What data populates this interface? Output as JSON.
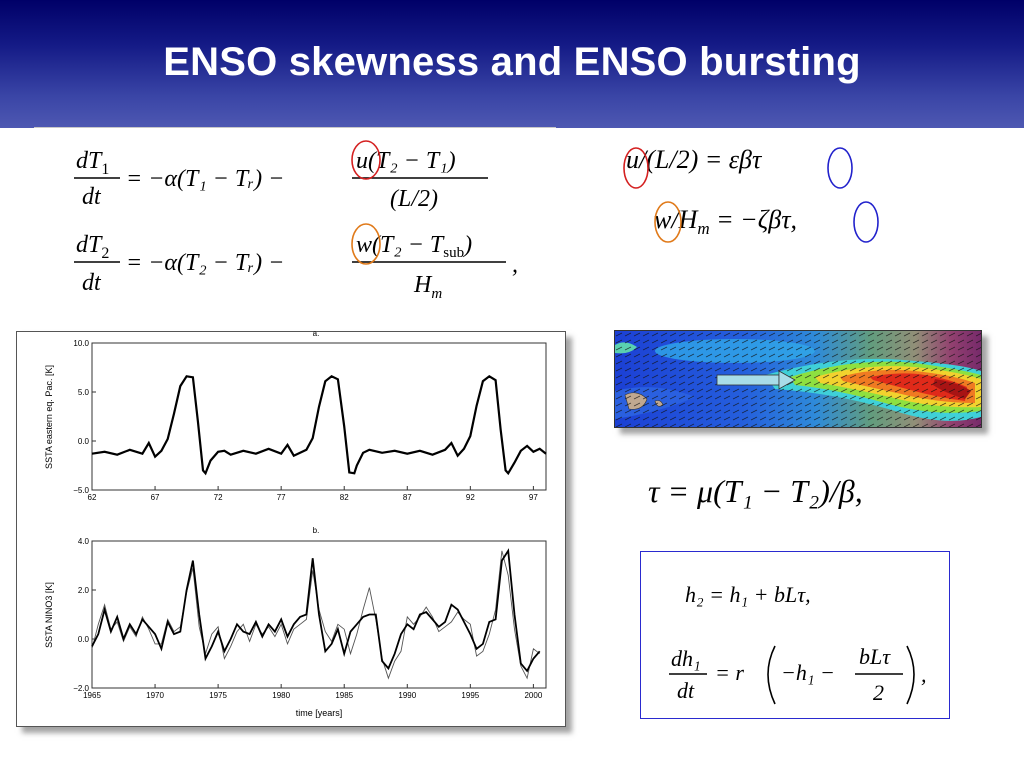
{
  "title": "ENSO skewness and ENSO bursting",
  "equations": {
    "eq1": {
      "lhs_num": "dT",
      "lhs_sub": "1",
      "lhs_den": "dt",
      "rhs": "= −α(T₁ − Tᵣ) −",
      "num": "u(T₂ − T₁)",
      "den": "(L/2)"
    },
    "eq2": {
      "lhs_num": "dT",
      "lhs_sub": "2",
      "lhs_den": "dt",
      "rhs": "= −α(T₂ − Tᵣ) −",
      "num": "w(T₂ − T",
      "num_sub": "sub",
      "num_end": ")",
      "den": "H",
      "den_sub": "m",
      "end": ","
    },
    "u_rel": "u/(L/2)  =  εβτ",
    "w_rel_a": "w/H",
    "w_rel_sub": "m",
    "w_rel_b": "  =  −ζβτ,",
    "tau_rel": "τ  =  μ(T₁  −  T₂)/β,",
    "h2": "h₂  =  h₁  +  bLτ,",
    "dh1_num": "dh₁",
    "dh1_den": "dt",
    "dh1_mid": "=  r",
    "dh1_inner": "−h₁  −",
    "dh1_frac_num": "bLτ",
    "dh1_frac_den": "2",
    "dh1_end": ","
  },
  "colors": {
    "title_bg": "#1a1f8c",
    "circle_red": "#d42020",
    "circle_orange": "#e07a1a",
    "circle_blue": "#2222cc",
    "box_border": "#2a2acf"
  },
  "chart_data": [
    {
      "type": "line",
      "panel_label": "a.",
      "title": "",
      "xlabel": "",
      "ylabel": "SSTA eastern eq. Pac. [K]",
      "xlim": [
        62,
        98
      ],
      "ylim": [
        -5.0,
        10.0
      ],
      "xticks": [
        "62",
        "67",
        "72",
        "77",
        "82",
        "87",
        "92",
        "97"
      ],
      "yticks": [
        "−5.0",
        "0.0",
        "5.0",
        "10.0"
      ],
      "series": [
        {
          "x": [
            62,
            63,
            64,
            65,
            66,
            66.5,
            67,
            67.5,
            68,
            68.5,
            69,
            69.5,
            70,
            70.4,
            70.8,
            71,
            71.4,
            72,
            72.5,
            73,
            74,
            75,
            76,
            77,
            77.5,
            78,
            79,
            79.5,
            80,
            80.5,
            81,
            81.5,
            82,
            82.4,
            82.8,
            83,
            83.5,
            84,
            85,
            86,
            87,
            88,
            89,
            90,
            90.5,
            91,
            91.5,
            92,
            92.5,
            93,
            93.5,
            94,
            94.4,
            94.8,
            95,
            95.5,
            96,
            96.5,
            97,
            97.5,
            98
          ],
          "y": [
            -1.3,
            -1.1,
            -1.4,
            -0.9,
            -1.3,
            -0.2,
            -1.6,
            -1.0,
            0.2,
            2.8,
            5.6,
            6.6,
            6.5,
            2.0,
            -3.0,
            -3.3,
            -2.0,
            -1.1,
            -1.0,
            -1.4,
            -1.0,
            -1.3,
            -0.8,
            -1.3,
            -0.4,
            -1.5,
            -0.9,
            0.3,
            3.5,
            6.1,
            6.6,
            6.3,
            1.5,
            -3.2,
            -3.3,
            -2.5,
            -1.2,
            -0.9,
            -1.2,
            -1.0,
            -1.3,
            -1.0,
            -1.4,
            -0.9,
            -0.2,
            -1.5,
            -0.8,
            0.5,
            3.6,
            6.1,
            6.6,
            6.2,
            1.2,
            -3.0,
            -3.3,
            -2.2,
            -1.0,
            -0.5,
            -1.1,
            -0.8,
            -1.3
          ]
        }
      ]
    },
    {
      "type": "line",
      "panel_label": "b.",
      "title": "",
      "xlabel": "time [years]",
      "ylabel": "SSTA NINO3 [K]",
      "xlim": [
        1965,
        2001
      ],
      "ylim": [
        -2.0,
        4.0
      ],
      "xticks": [
        "1965",
        "1970",
        "1975",
        "1980",
        "1985",
        "1990",
        "1995",
        "2000"
      ],
      "yticks": [
        "−2.0",
        "0.0",
        "2.0",
        "4.0"
      ],
      "series": [
        {
          "x": [
            1965,
            1965.5,
            1966,
            1966.5,
            1967,
            1967.5,
            1968,
            1968.5,
            1969,
            1969.5,
            1970,
            1970.5,
            1971,
            1971.5,
            1972,
            1972.5,
            1973,
            1973.5,
            1974,
            1974.5,
            1975,
            1975.5,
            1976,
            1976.5,
            1977,
            1977.5,
            1978,
            1978.5,
            1979,
            1979.5,
            1980,
            1980.5,
            1981,
            1981.5,
            1982,
            1982.5,
            1983,
            1983.5,
            1984,
            1984.5,
            1985,
            1985.5,
            1986,
            1986.5,
            1987,
            1987.5,
            1988,
            1988.5,
            1989,
            1989.5,
            1990,
            1990.5,
            1991,
            1991.5,
            1992,
            1992.5,
            1993,
            1993.5,
            1994,
            1994.5,
            1995,
            1995.5,
            1996,
            1996.5,
            1997,
            1997.5,
            1998,
            1998.5,
            1999,
            1999.5,
            2000,
            2000.5
          ],
          "y": [
            -0.3,
            0.2,
            1.2,
            0.3,
            0.9,
            0.0,
            0.6,
            0.2,
            0.8,
            0.5,
            0.2,
            -0.4,
            0.7,
            0.2,
            0.3,
            2.0,
            3.2,
            1.0,
            -0.8,
            -0.3,
            0.3,
            -0.5,
            0.0,
            0.6,
            0.3,
            0.2,
            0.7,
            0.1,
            0.6,
            0.3,
            0.8,
            0.1,
            0.6,
            0.9,
            1.0,
            3.3,
            1.0,
            -0.5,
            -0.2,
            0.4,
            -0.6,
            0.3,
            0.6,
            0.9,
            1.0,
            1.0,
            -0.9,
            -1.2,
            -0.6,
            0.2,
            0.6,
            0.4,
            1.0,
            1.1,
            0.8,
            0.5,
            0.7,
            1.4,
            1.2,
            0.7,
            0.2,
            -0.4,
            -0.2,
            0.7,
            0.8,
            3.2,
            3.6,
            1.0,
            -1.0,
            -1.3,
            -0.8,
            -0.5
          ]
        },
        {
          "x": [
            1965,
            1965.5,
            1966,
            1966.5,
            1967,
            1967.5,
            1968,
            1968.5,
            1969,
            1969.5,
            1970,
            1970.5,
            1971,
            1971.5,
            1972,
            1972.5,
            1973,
            1973.5,
            1974,
            1974.5,
            1975,
            1975.5,
            1976,
            1976.5,
            1977,
            1977.5,
            1978,
            1978.5,
            1979,
            1979.5,
            1980,
            1980.5,
            1981,
            1981.5,
            1982,
            1982.5,
            1983,
            1983.5,
            1984,
            1984.5,
            1985,
            1985.5,
            1986,
            1986.5,
            1987,
            1987.5,
            1988,
            1988.5,
            1989,
            1989.5,
            1990,
            1990.5,
            1991,
            1991.5,
            1992,
            1992.5,
            1993,
            1993.5,
            1994,
            1994.5,
            1995,
            1995.5,
            1996,
            1996.5,
            1997,
            1997.5,
            1998,
            1998.5,
            1999,
            1999.5,
            2000,
            2000.5
          ],
          "y": [
            -0.4,
            0.6,
            1.4,
            0.4,
            0.7,
            -0.1,
            0.5,
            0.1,
            0.9,
            0.4,
            -0.2,
            -0.2,
            0.8,
            0.3,
            0.5,
            1.9,
            2.9,
            0.5,
            -0.6,
            0.2,
            0.5,
            -0.8,
            -0.3,
            0.3,
            0.6,
            -0.1,
            0.6,
            0.2,
            0.5,
            0.1,
            0.6,
            -0.2,
            0.4,
            0.6,
            0.8,
            2.8,
            1.2,
            0.3,
            -0.1,
            0.6,
            0.4,
            -0.6,
            0.2,
            1.2,
            2.1,
            0.8,
            -0.8,
            -1.6,
            -0.9,
            -0.5,
            0.9,
            0.6,
            0.9,
            1.3,
            0.9,
            0.3,
            0.5,
            0.7,
            1.1,
            0.8,
            0.6,
            -0.7,
            -0.5,
            0.2,
            1.2,
            3.6,
            2.6,
            0.4,
            -1.1,
            -1.6,
            -0.4,
            -0.6
          ]
        }
      ]
    }
  ]
}
